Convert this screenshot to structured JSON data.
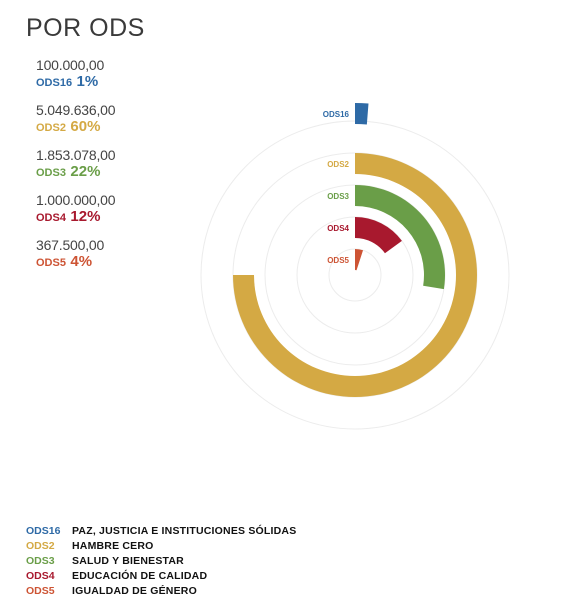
{
  "title": "POR ODS",
  "chart_data": {
    "type": "radial-bar",
    "title": "POR ODS",
    "max_percent": 80,
    "series": [
      {
        "code": "ODS16",
        "value": 100000.0,
        "value_label": "100.000,00",
        "percent": 1,
        "percent_label": "1%",
        "color": "#2e6aa6",
        "name": "PAZ, JUSTICIA E INSTITUCIONES SÓLIDAS"
      },
      {
        "code": "ODS2",
        "value": 5049636.0,
        "value_label": "5.049.636,00",
        "percent": 60,
        "percent_label": "60%",
        "color": "#d4a944",
        "name": "HAMBRE CERO"
      },
      {
        "code": "ODS3",
        "value": 1853078.0,
        "value_label": "1.853.078,00",
        "percent": 22,
        "percent_label": "22%",
        "color": "#6a9e48",
        "name": "SALUD Y BIENESTAR"
      },
      {
        "code": "ODS4",
        "value": 1000000.0,
        "value_label": "1.000.000,00",
        "percent": 12,
        "percent_label": "12%",
        "color": "#a8192e",
        "name": "EDUCACIÓN DE CALIDAD"
      },
      {
        "code": "ODS5",
        "value": 367500.0,
        "value_label": "367.500,00",
        "percent": 4,
        "percent_label": "4%",
        "color": "#cd5434",
        "name": "IGUALDAD DE GÉNERO"
      }
    ]
  }
}
